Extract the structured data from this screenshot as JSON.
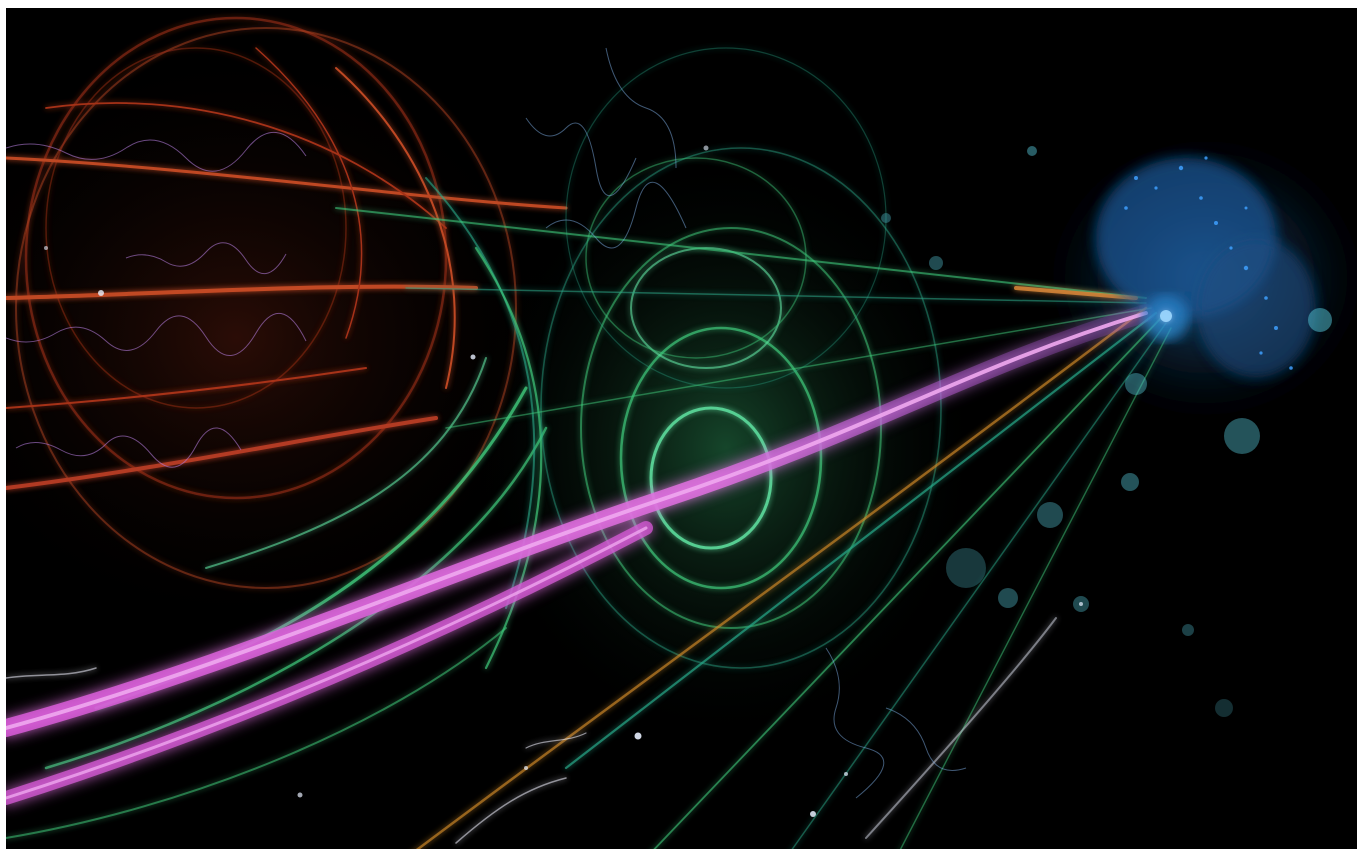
{
  "image": {
    "subject": "particle-collision-visualization",
    "palette": {
      "background": "#000000",
      "violet_beam": "#d85ad8",
      "violet_core": "#f0a8f0",
      "green": "#3ec77a",
      "teal": "#2aa889",
      "orange": "#e0552a",
      "red": "#c23a1c",
      "blue": "#2f8fd8",
      "pale_blue": "#9fd8ff",
      "white_glow": "#f2f2ff"
    }
  }
}
